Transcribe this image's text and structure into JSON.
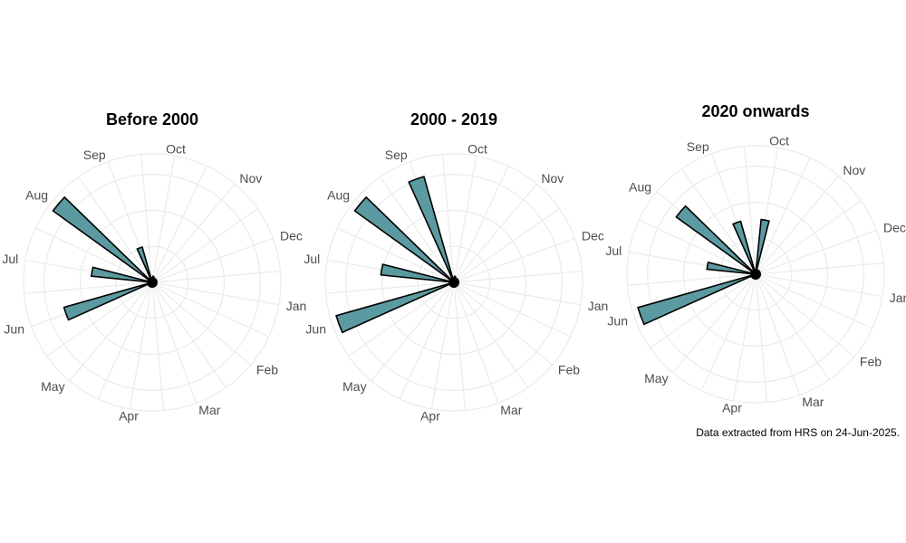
{
  "chart_data": [
    {
      "type": "bar",
      "coord": "polar",
      "title": "Before 2000",
      "categories": [
        "Jan",
        "Feb",
        "Mar",
        "Apr",
        "May",
        "Jun",
        "Jul",
        "Aug",
        "Sep",
        "Oct",
        "Nov",
        "Dec"
      ],
      "series": [
        {
          "values": [
            0,
            0,
            0,
            0,
            0,
            15,
            10,
            20,
            6,
            1,
            0,
            0
          ]
        }
      ],
      "grid": true,
      "fill_color": "#5b9aa0"
    },
    {
      "type": "bar",
      "coord": "polar",
      "title": "2000 - 2019",
      "categories": [
        "Jan",
        "Feb",
        "Mar",
        "Apr",
        "May",
        "Jun",
        "Jul",
        "Aug",
        "Sep",
        "Oct",
        "Nov",
        "Dec"
      ],
      "series": [
        {
          "values": [
            0,
            0,
            0,
            0,
            0,
            20,
            12,
            20,
            18,
            1,
            0,
            0
          ]
        }
      ],
      "grid": true,
      "fill_color": "#5b9aa0"
    },
    {
      "type": "bar",
      "coord": "polar",
      "title": "2020 onwards",
      "categories": [
        "Jan",
        "Feb",
        "Mar",
        "Apr",
        "May",
        "Jun",
        "Jul",
        "Aug",
        "Sep",
        "Oct",
        "Nov",
        "Dec"
      ],
      "series": [
        {
          "values": [
            0,
            0,
            0,
            0,
            0,
            20,
            8,
            16,
            9,
            9,
            0,
            0
          ]
        }
      ],
      "grid": true,
      "fill_color": "#5b9aa0"
    }
  ],
  "caption": "Data extracted from HRS on 24-Jun-2025.",
  "colors": {
    "bar_fill": "#5b9aa0",
    "bar_stroke": "#000000",
    "grid": "#ebebeb",
    "label": "#4d4d4d"
  }
}
